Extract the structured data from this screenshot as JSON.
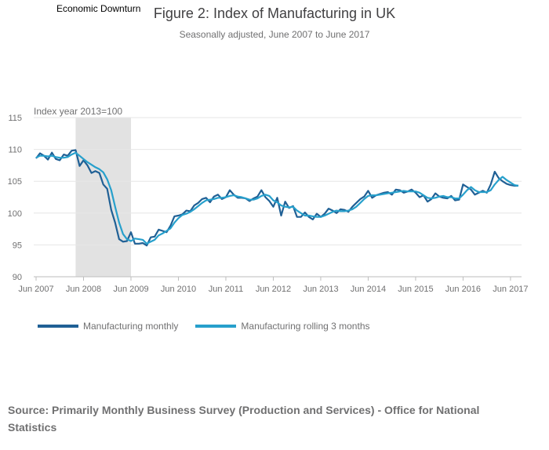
{
  "annotation_label": "Economic Downturn",
  "colors": {
    "monthly": "#206095",
    "rolling": "#27a0cc",
    "shade": "#e2e2e2",
    "grid": "#e6e6e6"
  },
  "chart_data": {
    "type": "line",
    "title": "Figure 2: Index of Manufacturing in UK",
    "subtitle": "Seasonally adjusted, June 2007 to June 2017",
    "ylabel": "Index year 2013=100",
    "ylim": [
      90,
      115
    ],
    "yticks": [
      90,
      95,
      100,
      105,
      110,
      115
    ],
    "xticks": [
      "Jun 2007",
      "Jun 2008",
      "Jun 2009",
      "Jun 2010",
      "Jun 2011",
      "Jun 2012",
      "Jun 2013",
      "Jun 2014",
      "Jun 2015",
      "Jun 2016",
      "Jun 2017"
    ],
    "x_start": "Jun 2007",
    "x_end": "Jun 2017",
    "shaded_region": {
      "label": "Economic Downturn",
      "start": "Apr 2008",
      "end": "Jun 2009"
    },
    "legend_position": "bottom-left",
    "grid": true,
    "series": [
      {
        "name": "Manufacturing monthly",
        "values": [
          108.6,
          109.4,
          109.0,
          108.4,
          109.5,
          108.5,
          108.3,
          109.2,
          109.0,
          109.8,
          109.9,
          107.4,
          108.3,
          107.5,
          106.3,
          106.6,
          106.3,
          104.5,
          103.8,
          100.5,
          98.5,
          95.9,
          95.5,
          95.6,
          97.0,
          95.2,
          95.2,
          95.3,
          94.9,
          96.2,
          96.3,
          97.4,
          97.2,
          97.0,
          98.0,
          99.5,
          99.6,
          99.8,
          100.4,
          100.3,
          101.2,
          101.6,
          102.2,
          102.4,
          101.7,
          102.6,
          102.9,
          102.2,
          102.5,
          103.6,
          102.9,
          102.4,
          102.4,
          102.3,
          101.9,
          102.3,
          102.6,
          103.6,
          102.5,
          101.9,
          101.0,
          102.4,
          99.6,
          101.8,
          100.8,
          101.1,
          99.4,
          99.4,
          100.1,
          99.4,
          99.0,
          99.9,
          99.4,
          99.9,
          100.7,
          100.4,
          100.0,
          100.6,
          100.5,
          100.2,
          101.0,
          101.6,
          102.2,
          102.6,
          103.5,
          102.4,
          102.8,
          103.0,
          103.2,
          103.3,
          102.9,
          103.7,
          103.6,
          103.2,
          103.4,
          103.7,
          103.2,
          102.5,
          102.8,
          101.8,
          102.2,
          103.1,
          102.6,
          102.4,
          102.3,
          102.7,
          102.0,
          102.1,
          104.5,
          104.1,
          103.7,
          102.9,
          103.2,
          103.5,
          103.2,
          104.5,
          106.5,
          105.5,
          105.0,
          104.6,
          104.4,
          104.3,
          104.3
        ],
        "color": "#206095"
      },
      {
        "name": "Manufacturing rolling 3 months",
        "values": [
          108.7,
          109.0,
          109.0,
          108.9,
          109.0,
          108.8,
          108.7,
          108.7,
          108.8,
          109.2,
          109.5,
          109.0,
          108.5,
          108.0,
          107.6,
          107.2,
          106.9,
          106.4,
          105.3,
          103.6,
          101.0,
          98.5,
          96.7,
          95.9,
          95.6,
          96.0,
          95.9,
          95.8,
          95.2,
          95.5,
          95.8,
          96.5,
          96.8,
          97.2,
          97.6,
          98.5,
          99.2,
          99.7,
          99.9,
          100.2,
          100.6,
          101.1,
          101.6,
          102.0,
          102.1,
          102.2,
          102.4,
          102.4,
          102.5,
          102.7,
          102.8,
          102.6,
          102.5,
          102.3,
          102.1,
          102.1,
          102.3,
          102.7,
          102.9,
          102.7,
          102.0,
          101.7,
          101.2,
          101.0,
          100.9,
          101.0,
          100.4,
          100.0,
          99.6,
          99.6,
          99.5,
          99.4,
          99.4,
          99.6,
          99.9,
          100.2,
          100.4,
          100.3,
          100.3,
          100.4,
          100.6,
          101.0,
          101.6,
          102.2,
          102.7,
          102.8,
          102.8,
          102.9,
          103.0,
          103.1,
          103.2,
          103.3,
          103.4,
          103.5,
          103.4,
          103.4,
          103.4,
          103.2,
          102.8,
          102.4,
          102.3,
          102.4,
          102.6,
          102.7,
          102.5,
          102.5,
          102.3,
          102.3,
          102.9,
          103.6,
          104.1,
          103.6,
          103.3,
          103.3,
          103.3,
          103.6,
          104.5,
          105.2,
          105.7,
          105.2,
          104.8,
          104.4,
          104.3
        ],
        "color": "#27a0cc"
      }
    ]
  },
  "source_text": "Source: Primarily Monthly Business Survey (Production and Services) - Office for National Statistics"
}
